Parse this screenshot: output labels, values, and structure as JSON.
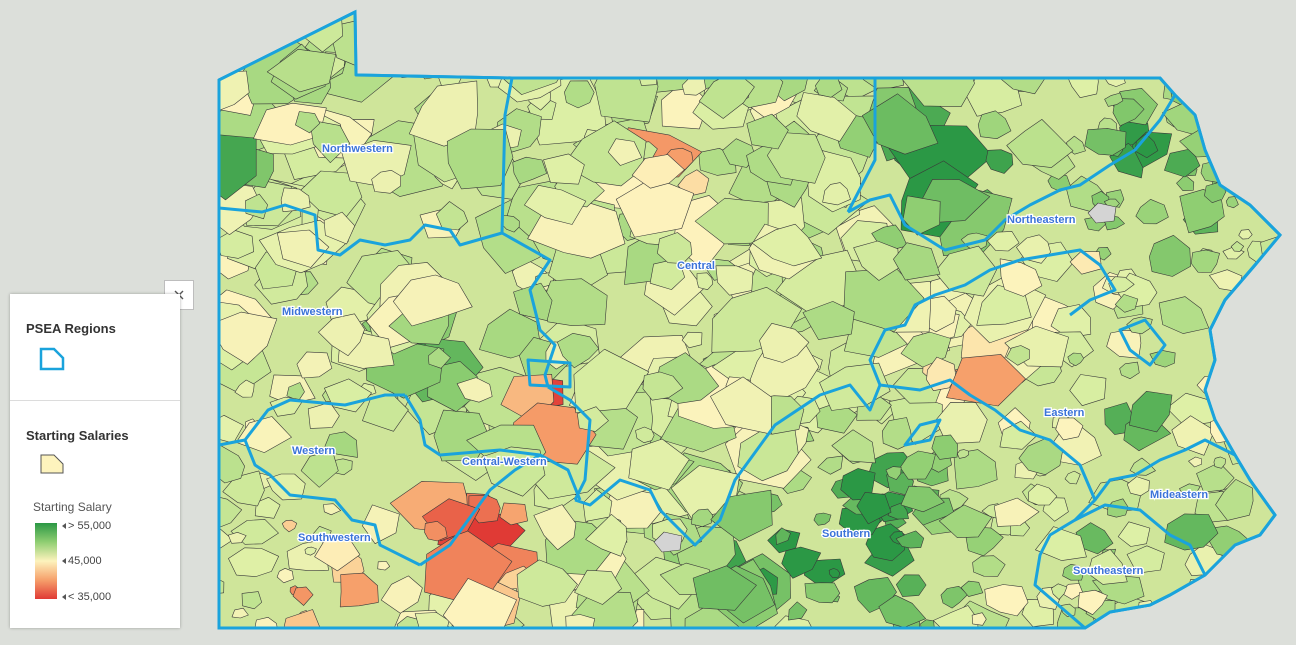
{
  "map": {
    "regions": [
      {
        "name": "Northwestern"
      },
      {
        "name": "Midwestern"
      },
      {
        "name": "Western"
      },
      {
        "name": "Southwestern"
      },
      {
        "name": "Central-Western"
      },
      {
        "name": "Central"
      },
      {
        "name": "Northeastern"
      },
      {
        "name": "Eastern"
      },
      {
        "name": "Southern"
      },
      {
        "name": "Mideastern"
      },
      {
        "name": "Southeastern"
      }
    ],
    "colors": {
      "region_border": "#1aa3dc",
      "high": "#2b9845",
      "mid": "#fdf3bd",
      "low": "#e03a35",
      "no_data": "#d4d4d4",
      "background": "#dcdfda"
    }
  },
  "legend": {
    "close_icon": "close-icon",
    "regions_title": "PSEA Regions",
    "salaries_title": "Starting Salaries",
    "ramp_title": "Starting Salary",
    "ramp_labels": [
      "> 55,000",
      "45,000",
      "< 35,000"
    ]
  }
}
